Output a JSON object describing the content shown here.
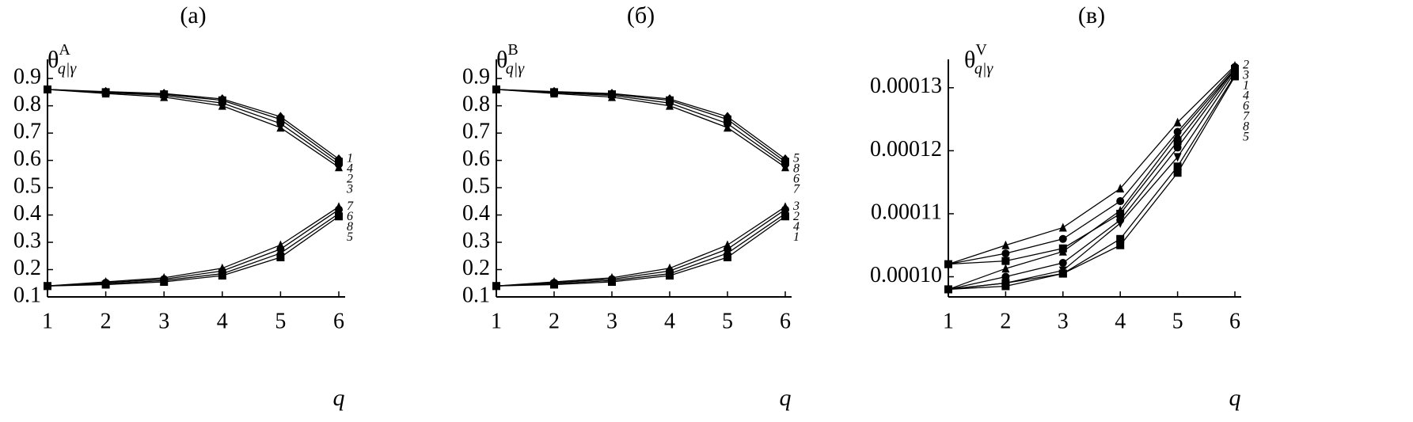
{
  "chart_data": [
    {
      "type": "line",
      "title": "(а)",
      "ylabel": {
        "symbol": "θ",
        "sup": "A",
        "sub": "q|γ"
      },
      "xlabel": "q",
      "x": [
        1,
        2,
        3,
        4,
        5,
        6
      ],
      "xlim": [
        1,
        6
      ],
      "xticks": [
        1,
        2,
        3,
        4,
        5,
        6
      ],
      "ylim": [
        0.1,
        0.97
      ],
      "yticks": [
        0.1,
        0.2,
        0.3,
        0.4,
        0.5,
        0.6,
        0.7,
        0.8,
        0.9
      ],
      "color": "#000000",
      "series": [
        {
          "name": "1",
          "marker": "diamond",
          "values": [
            0.86,
            0.852,
            0.845,
            0.825,
            0.76,
            0.605
          ]
        },
        {
          "name": "2",
          "marker": "circle",
          "values": [
            0.86,
            0.848,
            0.838,
            0.81,
            0.735,
            0.585
          ]
        },
        {
          "name": "3",
          "marker": "triangle",
          "values": [
            0.86,
            0.845,
            0.832,
            0.8,
            0.72,
            0.575
          ]
        },
        {
          "name": "4",
          "marker": "square",
          "values": [
            0.86,
            0.85,
            0.842,
            0.82,
            0.75,
            0.595
          ]
        },
        {
          "name": "5",
          "marker": "square",
          "values": [
            0.14,
            0.145,
            0.155,
            0.178,
            0.245,
            0.395
          ]
        },
        {
          "name": "6",
          "marker": "circle",
          "values": [
            0.14,
            0.152,
            0.165,
            0.195,
            0.275,
            0.42
          ]
        },
        {
          "name": "7",
          "marker": "triangle",
          "values": [
            0.14,
            0.155,
            0.17,
            0.205,
            0.29,
            0.43
          ]
        },
        {
          "name": "8",
          "marker": "diamond",
          "values": [
            0.14,
            0.148,
            0.16,
            0.185,
            0.26,
            0.405
          ]
        }
      ]
    },
    {
      "type": "line",
      "title": "(б)",
      "ylabel": {
        "symbol": "θ",
        "sup": "B",
        "sub": "q|γ"
      },
      "xlabel": "q",
      "x": [
        1,
        2,
        3,
        4,
        5,
        6
      ],
      "xlim": [
        1,
        6
      ],
      "xticks": [
        1,
        2,
        3,
        4,
        5,
        6
      ],
      "ylim": [
        0.1,
        0.97
      ],
      "yticks": [
        0.1,
        0.2,
        0.3,
        0.4,
        0.5,
        0.6,
        0.7,
        0.8,
        0.9
      ],
      "color": "#000000",
      "series": [
        {
          "name": "1",
          "marker": "square",
          "values": [
            0.14,
            0.145,
            0.155,
            0.178,
            0.245,
            0.395
          ]
        },
        {
          "name": "2",
          "marker": "circle",
          "values": [
            0.14,
            0.152,
            0.165,
            0.195,
            0.275,
            0.42
          ]
        },
        {
          "name": "3",
          "marker": "triangle",
          "values": [
            0.14,
            0.155,
            0.17,
            0.205,
            0.29,
            0.43
          ]
        },
        {
          "name": "4",
          "marker": "diamond",
          "values": [
            0.14,
            0.148,
            0.16,
            0.185,
            0.26,
            0.405
          ]
        },
        {
          "name": "5",
          "marker": "diamond",
          "values": [
            0.86,
            0.852,
            0.845,
            0.825,
            0.76,
            0.605
          ]
        },
        {
          "name": "6",
          "marker": "circle",
          "values": [
            0.86,
            0.848,
            0.838,
            0.81,
            0.735,
            0.585
          ]
        },
        {
          "name": "7",
          "marker": "triangle",
          "values": [
            0.86,
            0.845,
            0.832,
            0.8,
            0.72,
            0.575
          ]
        },
        {
          "name": "8",
          "marker": "square",
          "values": [
            0.86,
            0.85,
            0.842,
            0.82,
            0.75,
            0.595
          ]
        }
      ]
    },
    {
      "type": "line",
      "title": "(в)",
      "ylabel": {
        "symbol": "θ",
        "sup": "V",
        "sub": "q|γ"
      },
      "xlabel": "q",
      "x": [
        1,
        2,
        3,
        4,
        5,
        6
      ],
      "xlim": [
        1,
        6
      ],
      "xticks": [
        1,
        2,
        3,
        4,
        5,
        6
      ],
      "ylim": [
        9.68e-05,
        0.0001345
      ],
      "yticks": [
        {
          "value": 0.0001,
          "label": "0.00010"
        },
        0.00011,
        0.00012,
        0.00013
      ],
      "color": "#000000",
      "series": [
        {
          "name": "1",
          "marker": "triangle",
          "values": [
            9.8e-05,
            0.0001013,
            0.000104,
            0.0001105,
            0.0001225,
            0.000133
          ]
        },
        {
          "name": "2",
          "marker": "triangle",
          "values": [
            0.000102,
            0.000105,
            0.0001078,
            0.000114,
            0.0001245,
            0.0001335
          ]
        },
        {
          "name": "3",
          "marker": "circle",
          "values": [
            0.000102,
            0.0001037,
            0.000106,
            0.000112,
            0.000123,
            0.0001333
          ]
        },
        {
          "name": "4",
          "marker": "square",
          "values": [
            0.000102,
            0.0001025,
            0.0001045,
            0.00011,
            0.0001215,
            0.000133
          ]
        },
        {
          "name": "5",
          "marker": "square",
          "values": [
            9.8e-05,
            9.85e-05,
            0.0001005,
            0.000105,
            0.0001165,
            0.0001318
          ]
        },
        {
          "name": "6",
          "marker": "circle",
          "values": [
            9.8e-05,
            0.0001,
            0.0001022,
            0.000109,
            0.0001205,
            0.0001328
          ]
        },
        {
          "name": "7",
          "marker": "invtriangle",
          "values": [
            9.8e-05,
            9.9e-05,
            0.000101,
            0.0001085,
            0.000119,
            0.0001325
          ]
        },
        {
          "name": "8",
          "marker": "square",
          "values": [
            9.8e-05,
            9.9e-05,
            0.0001005,
            0.000106,
            0.0001175,
            0.000132
          ]
        }
      ]
    }
  ]
}
